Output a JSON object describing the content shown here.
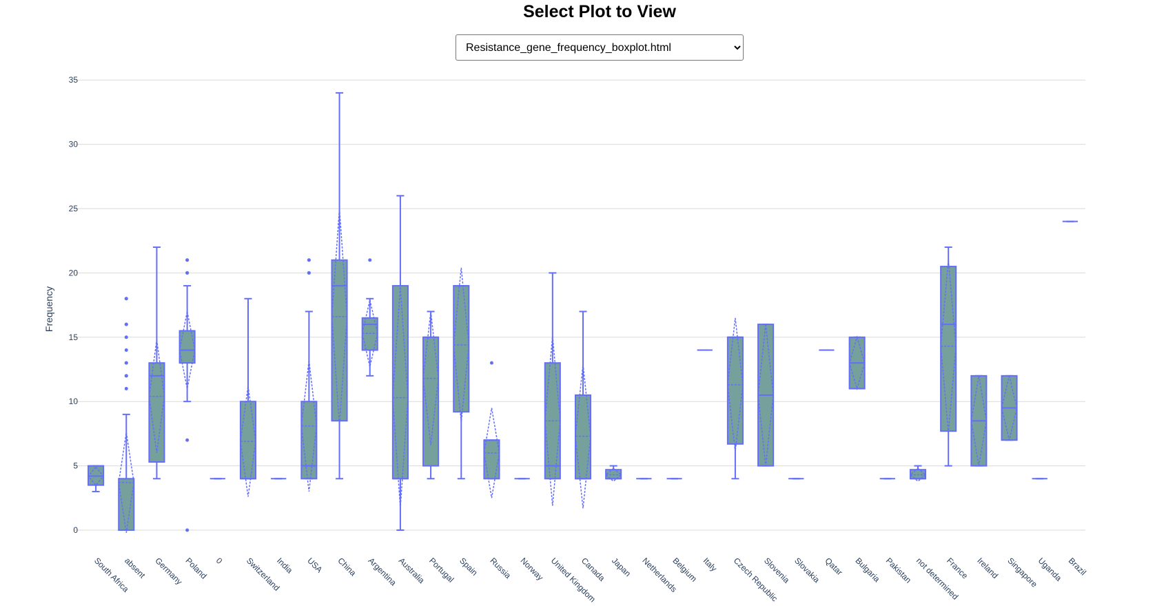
{
  "page": {
    "title": "Select Plot to View",
    "selected_plot": "Resistance_gene_frequency_boxplot.html"
  },
  "chart_data": {
    "type": "box",
    "ylabel": "Frequency",
    "xlabel": "",
    "ylim": [
      -1.5,
      35.5
    ],
    "yticks": [
      0,
      5,
      10,
      15,
      20,
      25,
      30,
      35
    ],
    "grid": true,
    "box_color": "#636efa",
    "box_fill": "#76a09c",
    "categories": [
      "South Africa",
      "absent",
      "Germany",
      "Poland",
      "0",
      "Switzerland",
      "India",
      "USA",
      "China",
      "Argentina",
      "Australia",
      "Portugal",
      "Spain",
      "Russia",
      "Norway",
      "United Kingdom",
      "Canada",
      "Japan",
      "Netherlands",
      "Belgium",
      "Italy",
      "Czech Republic",
      "Slovenia",
      "Slovakia",
      "Qatar",
      "Bulgaria",
      "Pakistan",
      "not determined",
      "France",
      "Ireland",
      "Singapore",
      "Uganda",
      "Brazil"
    ],
    "boxes": [
      {
        "min": 3,
        "q1": 3.5,
        "median": 4.2,
        "q3": 5,
        "max": 5,
        "mean": 4.2,
        "sd": 0.7,
        "outliers": []
      },
      {
        "min": 0,
        "q1": 0,
        "median": 0,
        "q3": 4,
        "max": 9,
        "mean": 3.7,
        "sd": 3.9,
        "outliers": [
          11,
          12,
          12,
          13,
          13,
          14,
          15,
          16,
          16,
          18,
          18
        ]
      },
      {
        "min": 4,
        "q1": 5.3,
        "median": 12,
        "q3": 13,
        "max": 22,
        "mean": 10.4,
        "sd": 4.4,
        "outliers": []
      },
      {
        "min": 10,
        "q1": 13,
        "median": 14,
        "q3": 15.5,
        "max": 19,
        "mean": 14,
        "sd": 3,
        "outliers": [
          0,
          7,
          20,
          20,
          21,
          21
        ]
      },
      {
        "min": 4,
        "q1": 4,
        "median": 4,
        "q3": 4,
        "max": 4,
        "mean": 4,
        "sd": 0,
        "outliers": []
      },
      {
        "min": 4,
        "q1": 4,
        "median": 4,
        "q3": 10,
        "max": 18,
        "mean": 6.9,
        "sd": 4.3,
        "outliers": []
      },
      {
        "min": 4,
        "q1": 4,
        "median": 4,
        "q3": 4,
        "max": 4,
        "mean": 4,
        "sd": 0,
        "outliers": []
      },
      {
        "min": 4,
        "q1": 4,
        "median": 5,
        "q3": 10,
        "max": 17,
        "mean": 8.1,
        "sd": 5.1,
        "outliers": [
          20,
          20,
          21,
          21
        ]
      },
      {
        "min": 4,
        "q1": 8.5,
        "median": 19,
        "q3": 21,
        "max": 34,
        "mean": 16.6,
        "sd": 8.4,
        "outliers": []
      },
      {
        "min": 12,
        "q1": 14,
        "median": 16,
        "q3": 16.5,
        "max": 18,
        "mean": 15.3,
        "sd": 2.6,
        "outliers": [
          21
        ]
      },
      {
        "min": 0,
        "q1": 4,
        "median": 4,
        "q3": 19,
        "max": 26,
        "mean": 10.3,
        "sd": 8.6,
        "outliers": []
      },
      {
        "min": 4,
        "q1": 5,
        "median": 15,
        "q3": 15,
        "max": 17,
        "mean": 11.8,
        "sd": 5.2,
        "outliers": []
      },
      {
        "min": 4,
        "q1": 9.2,
        "median": 19,
        "q3": 19,
        "max": 19,
        "mean": 14.4,
        "sd": 6,
        "outliers": []
      },
      {
        "min": 4,
        "q1": 4,
        "median": 7,
        "q3": 7,
        "max": 7,
        "mean": 6,
        "sd": 3.5,
        "outliers": [
          13
        ]
      },
      {
        "min": 4,
        "q1": 4,
        "median": 4,
        "q3": 4,
        "max": 4,
        "mean": 4,
        "sd": 0,
        "outliers": []
      },
      {
        "min": 4,
        "q1": 4,
        "median": 5,
        "q3": 13,
        "max": 20,
        "mean": 8.5,
        "sd": 6.6,
        "outliers": []
      },
      {
        "min": 4,
        "q1": 4,
        "median": 4,
        "q3": 10.5,
        "max": 17,
        "mean": 7.3,
        "sd": 5.6,
        "outliers": []
      },
      {
        "min": 4,
        "q1": 4,
        "median": 4,
        "q3": 4.7,
        "max": 5,
        "mean": 4.3,
        "sd": 0.5,
        "outliers": []
      },
      {
        "min": 4,
        "q1": 4,
        "median": 4,
        "q3": 4,
        "max": 4,
        "mean": 4,
        "sd": 0,
        "outliers": []
      },
      {
        "min": 4,
        "q1": 4,
        "median": 4,
        "q3": 4,
        "max": 4,
        "mean": 4,
        "sd": 0,
        "outliers": []
      },
      {
        "min": 14,
        "q1": 14,
        "median": 14,
        "q3": 14,
        "max": 14,
        "mean": 14,
        "sd": 0,
        "outliers": []
      },
      {
        "min": 4,
        "q1": 6.7,
        "median": 15,
        "q3": 15,
        "max": 15,
        "mean": 11.3,
        "sd": 5.2,
        "outliers": []
      },
      {
        "min": 5,
        "q1": 5,
        "median": 10.5,
        "q3": 16,
        "max": 16,
        "mean": 10.5,
        "sd": 5.5,
        "outliers": []
      },
      {
        "min": 4,
        "q1": 4,
        "median": 4,
        "q3": 4,
        "max": 4,
        "mean": 4,
        "sd": 0,
        "outliers": []
      },
      {
        "min": 14,
        "q1": 14,
        "median": 14,
        "q3": 14,
        "max": 14,
        "mean": 14,
        "sd": 0,
        "outliers": []
      },
      {
        "min": 11,
        "q1": 11,
        "median": 13,
        "q3": 15,
        "max": 15,
        "mean": 13,
        "sd": 2,
        "outliers": []
      },
      {
        "min": 4,
        "q1": 4,
        "median": 4,
        "q3": 4,
        "max": 4,
        "mean": 4,
        "sd": 0,
        "outliers": []
      },
      {
        "min": 4,
        "q1": 4,
        "median": 4,
        "q3": 4.7,
        "max": 5,
        "mean": 4.3,
        "sd": 0.5,
        "outliers": []
      },
      {
        "min": 5,
        "q1": 7.7,
        "median": 16,
        "q3": 20.5,
        "max": 22,
        "mean": 14.3,
        "sd": 6.7,
        "outliers": []
      },
      {
        "min": 5,
        "q1": 5,
        "median": 8.5,
        "q3": 12,
        "max": 12,
        "mean": 8.5,
        "sd": 3.5,
        "outliers": []
      },
      {
        "min": 7,
        "q1": 7,
        "median": 9.5,
        "q3": 12,
        "max": 12,
        "mean": 9.5,
        "sd": 2.5,
        "outliers": []
      },
      {
        "min": 4,
        "q1": 4,
        "median": 4,
        "q3": 4,
        "max": 4,
        "mean": 4,
        "sd": 0,
        "outliers": []
      },
      {
        "min": 24,
        "q1": 24,
        "median": 24,
        "q3": 24,
        "max": 24,
        "mean": 24,
        "sd": 0,
        "outliers": []
      }
    ]
  }
}
